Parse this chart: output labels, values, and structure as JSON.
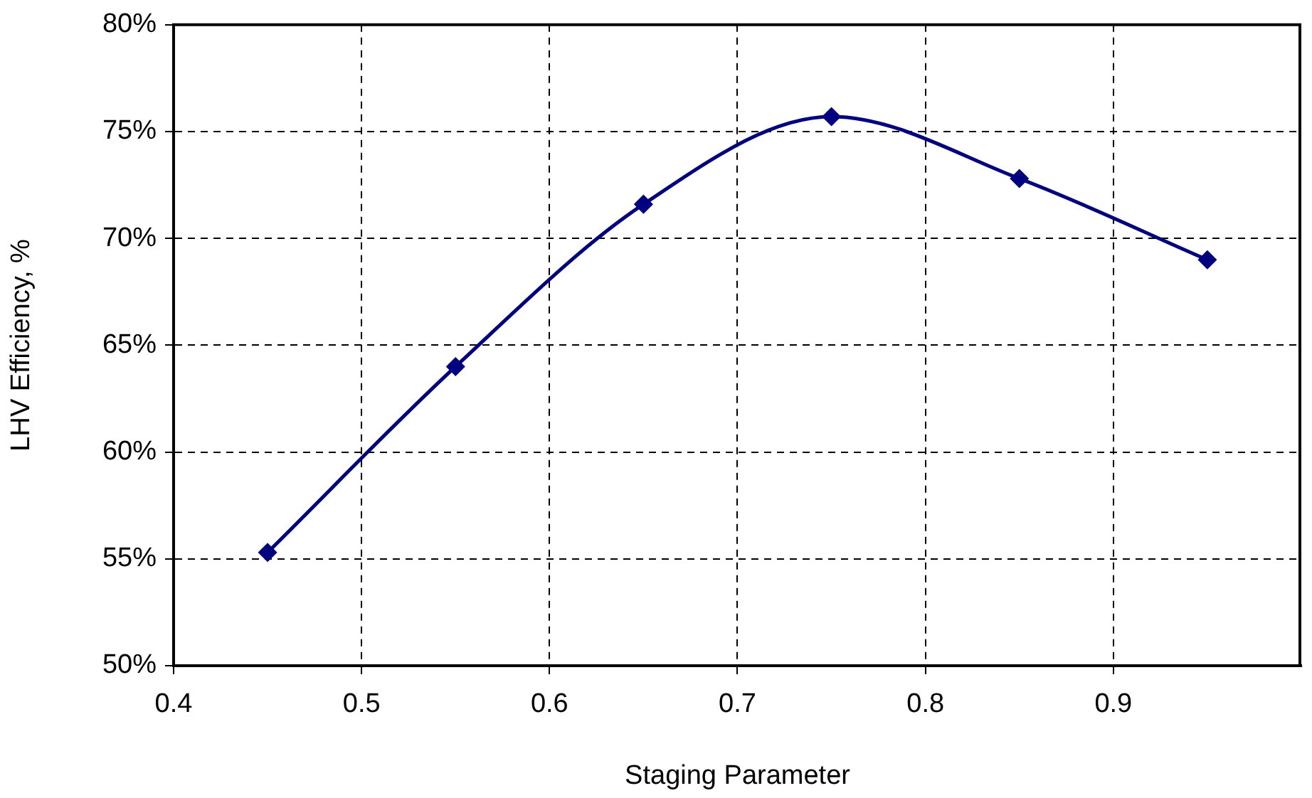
{
  "chart_data": {
    "type": "line",
    "xlabel": "Staging Parameter",
    "ylabel": "LHV Efficiency, %",
    "x": [
      0.45,
      0.55,
      0.65,
      0.75,
      0.85,
      0.95
    ],
    "series": [
      {
        "color": "#000080",
        "values": [
          55.3,
          64.0,
          71.6,
          75.7,
          72.8,
          69.0
        ]
      }
    ],
    "xlim": [
      0.4,
      1.0
    ],
    "xticks": [
      0.4,
      0.5,
      0.6,
      0.7,
      0.8,
      0.9
    ],
    "ylim": [
      50,
      80
    ],
    "yticks": [
      {
        "value": 50,
        "label": "50%"
      },
      {
        "value": 55,
        "label": "55%"
      },
      {
        "value": 60,
        "label": "60%"
      },
      {
        "value": 65,
        "label": "65%"
      },
      {
        "value": 70,
        "label": "70%"
      },
      {
        "value": 75,
        "label": "75%"
      },
      {
        "value": 80,
        "label": "80%"
      }
    ],
    "grid": true,
    "legend": false,
    "marker": "diamond",
    "line_style": "solid"
  }
}
